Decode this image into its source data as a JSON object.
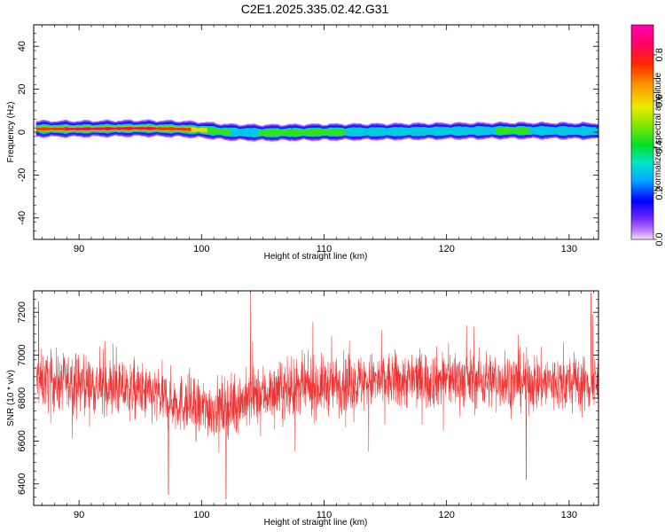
{
  "title": "C2E1.2025.335.02.42.G31",
  "chart_data": [
    {
      "type": "heatmap",
      "name": "spectrogram",
      "xlabel": "Height of straight line (km)",
      "ylabel": "Frequency (Hz)",
      "xlim": [
        86.3,
        132.4
      ],
      "ylim": [
        -50,
        50
      ],
      "xticks": [
        90,
        100,
        110,
        120,
        130
      ],
      "yticks": [
        -40,
        -20,
        0,
        20,
        40
      ],
      "colorbar": {
        "label": "Normalized spectral amplitude",
        "range": [
          0,
          0.93
        ],
        "ticks": [
          0.0,
          0.2,
          0.4,
          0.6,
          0.8
        ]
      },
      "band_center_hz": [
        {
          "x": 86.5,
          "f": 1.5
        },
        {
          "x": 90,
          "f": 1.5
        },
        {
          "x": 95,
          "f": 1.8
        },
        {
          "x": 98,
          "f": 1.5
        },
        {
          "x": 100,
          "f": 1.0
        },
        {
          "x": 102,
          "f": 0.0
        },
        {
          "x": 105,
          "f": -0.3
        },
        {
          "x": 110,
          "f": 0.0
        },
        {
          "x": 115,
          "f": 0.2
        },
        {
          "x": 120,
          "f": 0.5
        },
        {
          "x": 125,
          "f": 0.7
        },
        {
          "x": 130,
          "f": 0.6
        },
        {
          "x": 132.4,
          "f": 0.5
        }
      ],
      "peak_amplitude": [
        {
          "x": 86.5,
          "a": 0.75
        },
        {
          "x": 88,
          "a": 0.85
        },
        {
          "x": 90,
          "a": 0.92
        },
        {
          "x": 95,
          "a": 0.9
        },
        {
          "x": 98,
          "a": 0.85
        },
        {
          "x": 100,
          "a": 0.65
        },
        {
          "x": 101.5,
          "a": 0.45
        },
        {
          "x": 104,
          "a": 0.42
        },
        {
          "x": 108,
          "a": 0.55
        },
        {
          "x": 110,
          "a": 0.45
        },
        {
          "x": 115,
          "a": 0.42
        },
        {
          "x": 120,
          "a": 0.4
        },
        {
          "x": 125,
          "a": 0.45
        },
        {
          "x": 130,
          "a": 0.42
        },
        {
          "x": 132.4,
          "a": 0.4
        }
      ]
    },
    {
      "type": "line",
      "name": "snr",
      "xlabel": "Height of straight line (km)",
      "ylabel": "SNR (10 * v/v)",
      "xlim": [
        86.3,
        132.4
      ],
      "ylim": [
        6300,
        7300
      ],
      "xticks": [
        90,
        100,
        110,
        120,
        130
      ],
      "yticks": [
        6400,
        6600,
        6800,
        7000,
        7200
      ],
      "series": [
        {
          "color": "#f03232",
          "mean_profile": [
            {
              "x": 86.5,
              "y": 6880
            },
            {
              "x": 90,
              "y": 6870
            },
            {
              "x": 95,
              "y": 6830
            },
            {
              "x": 98,
              "y": 6780
            },
            {
              "x": 100,
              "y": 6750
            },
            {
              "x": 102,
              "y": 6760
            },
            {
              "x": 105,
              "y": 6820
            },
            {
              "x": 110,
              "y": 6860
            },
            {
              "x": 115,
              "y": 6880
            },
            {
              "x": 120,
              "y": 6890
            },
            {
              "x": 125,
              "y": 6880
            },
            {
              "x": 130,
              "y": 6870
            },
            {
              "x": 132.4,
              "y": 6860
            }
          ],
          "noise_spread": 110,
          "range": [
            6330,
            7290
          ],
          "spikes": [
            {
              "x": 86.7,
              "y": 7250
            },
            {
              "x": 104,
              "y": 7290
            },
            {
              "x": 131.8,
              "y": 7290
            },
            {
              "x": 102,
              "y": 6330
            },
            {
              "x": 97.3,
              "y": 6350
            },
            {
              "x": 126.5,
              "y": 6420
            }
          ]
        }
      ]
    }
  ]
}
